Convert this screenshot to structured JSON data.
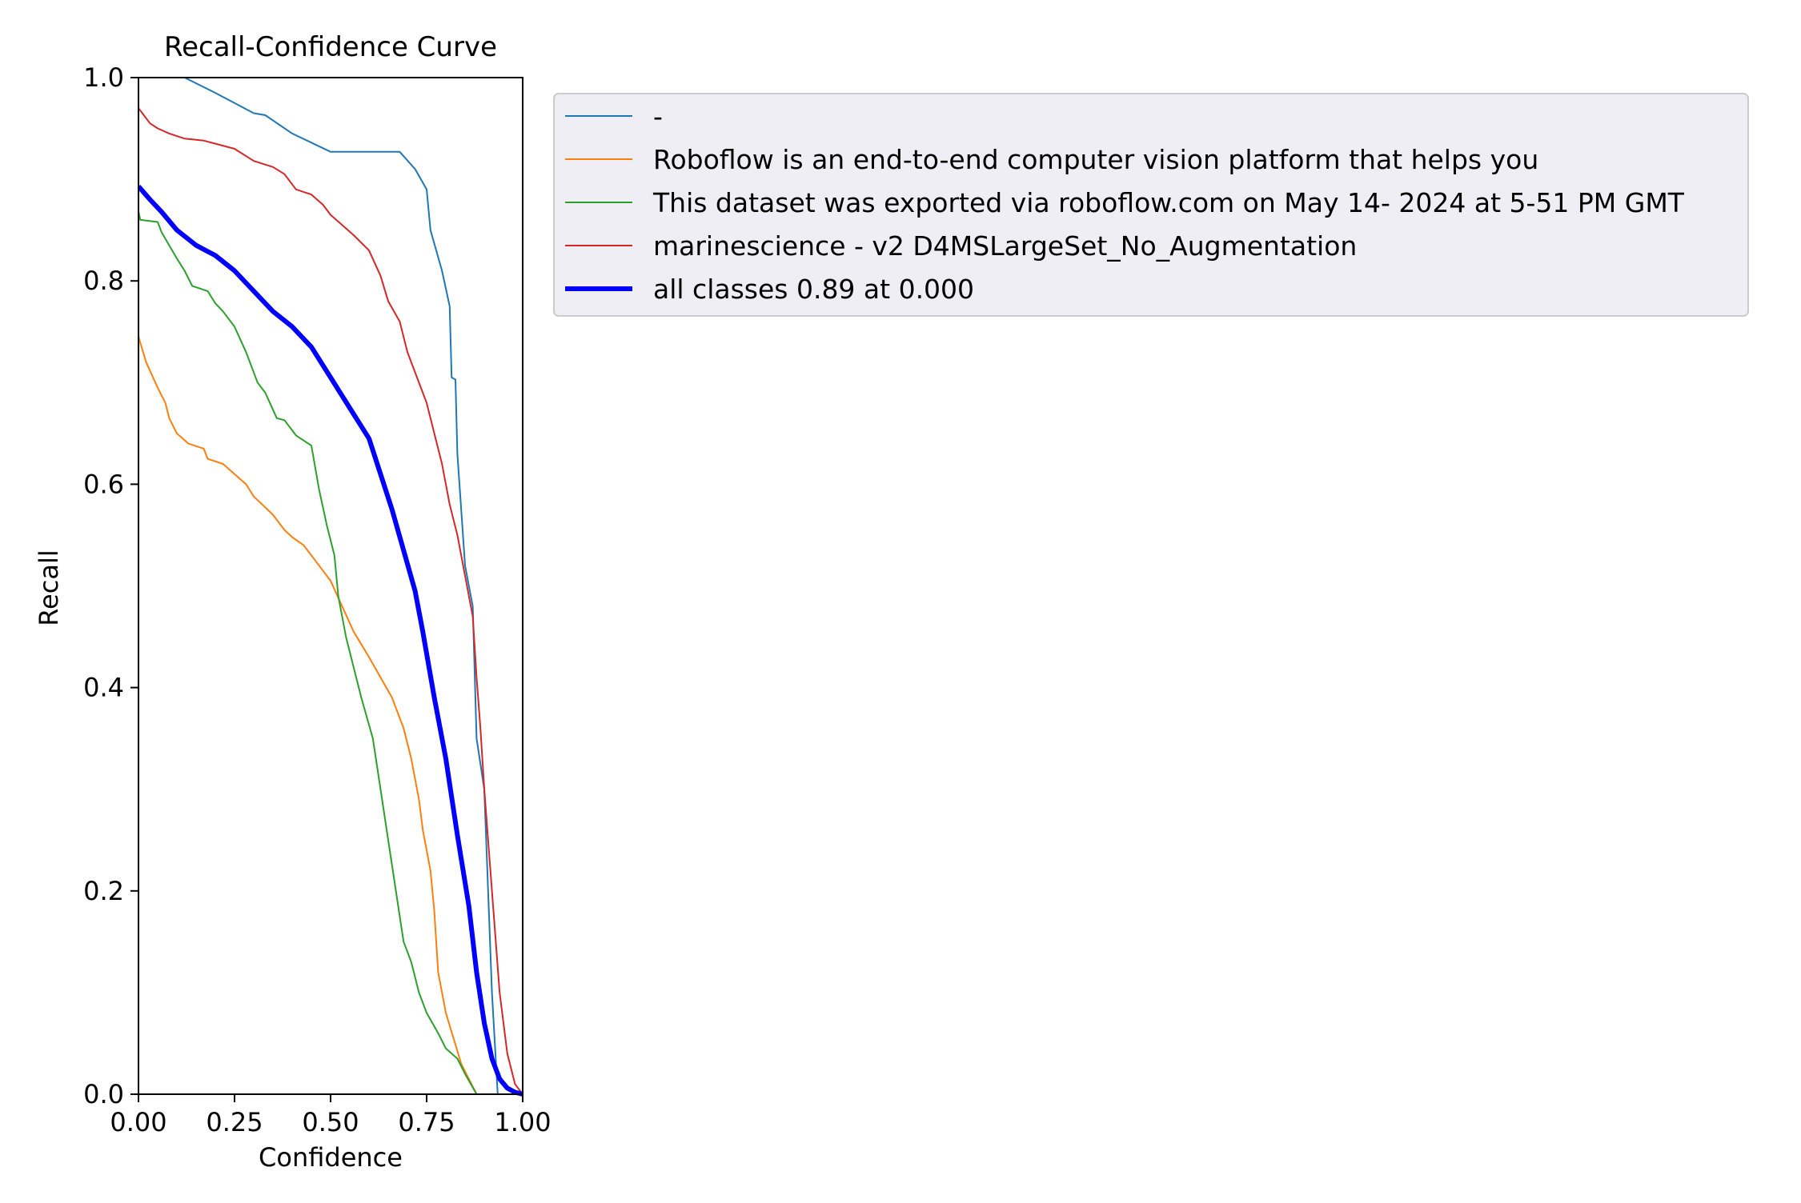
{
  "chart_data": {
    "type": "line",
    "title": "Recall-Confidence Curve",
    "xlabel": "Confidence",
    "ylabel": "Recall",
    "xlim": [
      0,
      1
    ],
    "ylim": [
      0,
      1
    ],
    "x_ticks": [
      "0.00",
      "0.25",
      "0.50",
      "0.75",
      "1.00"
    ],
    "y_ticks": [
      "0.0",
      "0.2",
      "0.4",
      "0.6",
      "0.8",
      "1.0"
    ],
    "grid": false,
    "legend_position": "outside-right-top",
    "series": [
      {
        "name": "-",
        "color": "#1f77b4",
        "width": 2,
        "points": [
          [
            0.0,
            1.0
          ],
          [
            0.12,
            1.0
          ],
          [
            0.2,
            0.985
          ],
          [
            0.3,
            0.965
          ],
          [
            0.33,
            0.963
          ],
          [
            0.4,
            0.945
          ],
          [
            0.5,
            0.927
          ],
          [
            0.55,
            0.927
          ],
          [
            0.6,
            0.927
          ],
          [
            0.68,
            0.927
          ],
          [
            0.72,
            0.91
          ],
          [
            0.75,
            0.89
          ],
          [
            0.76,
            0.85
          ],
          [
            0.79,
            0.81
          ],
          [
            0.81,
            0.775
          ],
          [
            0.815,
            0.705
          ],
          [
            0.825,
            0.703
          ],
          [
            0.83,
            0.63
          ],
          [
            0.85,
            0.52
          ],
          [
            0.87,
            0.48
          ],
          [
            0.88,
            0.35
          ],
          [
            0.9,
            0.3
          ],
          [
            0.92,
            0.1
          ],
          [
            0.935,
            0.0
          ],
          [
            1.0,
            0.0
          ]
        ]
      },
      {
        "name": "Roboflow is an end-to-end computer vision platform that helps you",
        "color": "#ff7f0e",
        "width": 2,
        "points": [
          [
            0.0,
            0.745
          ],
          [
            0.02,
            0.72
          ],
          [
            0.05,
            0.695
          ],
          [
            0.07,
            0.68
          ],
          [
            0.08,
            0.665
          ],
          [
            0.1,
            0.65
          ],
          [
            0.13,
            0.64
          ],
          [
            0.17,
            0.635
          ],
          [
            0.18,
            0.625
          ],
          [
            0.22,
            0.62
          ],
          [
            0.25,
            0.61
          ],
          [
            0.28,
            0.6
          ],
          [
            0.3,
            0.588
          ],
          [
            0.35,
            0.57
          ],
          [
            0.38,
            0.555
          ],
          [
            0.4,
            0.548
          ],
          [
            0.43,
            0.54
          ],
          [
            0.46,
            0.525
          ],
          [
            0.5,
            0.505
          ],
          [
            0.53,
            0.48
          ],
          [
            0.56,
            0.455
          ],
          [
            0.6,
            0.43
          ],
          [
            0.63,
            0.41
          ],
          [
            0.66,
            0.39
          ],
          [
            0.69,
            0.36
          ],
          [
            0.71,
            0.33
          ],
          [
            0.73,
            0.29
          ],
          [
            0.74,
            0.26
          ],
          [
            0.76,
            0.22
          ],
          [
            0.77,
            0.18
          ],
          [
            0.78,
            0.12
          ],
          [
            0.8,
            0.08
          ],
          [
            0.82,
            0.055
          ],
          [
            0.84,
            0.03
          ],
          [
            0.86,
            0.015
          ],
          [
            0.88,
            0.0
          ],
          [
            1.0,
            0.0
          ]
        ]
      },
      {
        "name": "This dataset was exported via roboflow.com on May 14- 2024 at 5-51 PM GMT",
        "color": "#2ca02c",
        "width": 2,
        "points": [
          [
            0.0,
            0.868
          ],
          [
            0.005,
            0.86
          ],
          [
            0.05,
            0.858
          ],
          [
            0.06,
            0.848
          ],
          [
            0.08,
            0.835
          ],
          [
            0.1,
            0.822
          ],
          [
            0.12,
            0.81
          ],
          [
            0.14,
            0.795
          ],
          [
            0.18,
            0.79
          ],
          [
            0.2,
            0.778
          ],
          [
            0.22,
            0.77
          ],
          [
            0.25,
            0.755
          ],
          [
            0.28,
            0.73
          ],
          [
            0.31,
            0.7
          ],
          [
            0.33,
            0.69
          ],
          [
            0.36,
            0.665
          ],
          [
            0.38,
            0.663
          ],
          [
            0.41,
            0.648
          ],
          [
            0.45,
            0.638
          ],
          [
            0.47,
            0.595
          ],
          [
            0.49,
            0.56
          ],
          [
            0.51,
            0.53
          ],
          [
            0.52,
            0.49
          ],
          [
            0.54,
            0.45
          ],
          [
            0.56,
            0.42
          ],
          [
            0.58,
            0.39
          ],
          [
            0.61,
            0.35
          ],
          [
            0.63,
            0.3
          ],
          [
            0.65,
            0.25
          ],
          [
            0.67,
            0.2
          ],
          [
            0.69,
            0.15
          ],
          [
            0.71,
            0.13
          ],
          [
            0.73,
            0.1
          ],
          [
            0.75,
            0.08
          ],
          [
            0.78,
            0.06
          ],
          [
            0.8,
            0.045
          ],
          [
            0.83,
            0.035
          ],
          [
            0.85,
            0.02
          ],
          [
            0.88,
            0.0
          ],
          [
            1.0,
            0.0
          ]
        ]
      },
      {
        "name": "marinescience - v2 D4MSLargeSet_No_Augmentation",
        "color": "#d62728",
        "width": 2,
        "points": [
          [
            0.0,
            0.97
          ],
          [
            0.01,
            0.965
          ],
          [
            0.03,
            0.955
          ],
          [
            0.05,
            0.95
          ],
          [
            0.08,
            0.945
          ],
          [
            0.12,
            0.94
          ],
          [
            0.17,
            0.938
          ],
          [
            0.2,
            0.935
          ],
          [
            0.25,
            0.93
          ],
          [
            0.3,
            0.918
          ],
          [
            0.35,
            0.912
          ],
          [
            0.38,
            0.905
          ],
          [
            0.41,
            0.89
          ],
          [
            0.45,
            0.885
          ],
          [
            0.48,
            0.875
          ],
          [
            0.5,
            0.865
          ],
          [
            0.53,
            0.855
          ],
          [
            0.56,
            0.845
          ],
          [
            0.6,
            0.83
          ],
          [
            0.63,
            0.805
          ],
          [
            0.65,
            0.78
          ],
          [
            0.68,
            0.76
          ],
          [
            0.7,
            0.73
          ],
          [
            0.72,
            0.71
          ],
          [
            0.75,
            0.68
          ],
          [
            0.77,
            0.65
          ],
          [
            0.79,
            0.62
          ],
          [
            0.81,
            0.58
          ],
          [
            0.83,
            0.55
          ],
          [
            0.85,
            0.51
          ],
          [
            0.87,
            0.47
          ],
          [
            0.88,
            0.41
          ],
          [
            0.89,
            0.36
          ],
          [
            0.9,
            0.3
          ],
          [
            0.92,
            0.2
          ],
          [
            0.94,
            0.1
          ],
          [
            0.96,
            0.04
          ],
          [
            0.98,
            0.01
          ],
          [
            1.0,
            0.0
          ]
        ]
      },
      {
        "name": "all classes 0.89 at 0.000",
        "color": "#0000ff",
        "width": 6,
        "points": [
          [
            0.0,
            0.893
          ],
          [
            0.03,
            0.88
          ],
          [
            0.06,
            0.868
          ],
          [
            0.1,
            0.85
          ],
          [
            0.15,
            0.835
          ],
          [
            0.2,
            0.825
          ],
          [
            0.25,
            0.81
          ],
          [
            0.3,
            0.79
          ],
          [
            0.35,
            0.77
          ],
          [
            0.4,
            0.755
          ],
          [
            0.45,
            0.735
          ],
          [
            0.5,
            0.705
          ],
          [
            0.55,
            0.675
          ],
          [
            0.6,
            0.645
          ],
          [
            0.63,
            0.61
          ],
          [
            0.66,
            0.575
          ],
          [
            0.69,
            0.535
          ],
          [
            0.72,
            0.495
          ],
          [
            0.74,
            0.455
          ],
          [
            0.77,
            0.39
          ],
          [
            0.8,
            0.33
          ],
          [
            0.83,
            0.255
          ],
          [
            0.86,
            0.185
          ],
          [
            0.88,
            0.12
          ],
          [
            0.9,
            0.07
          ],
          [
            0.92,
            0.035
          ],
          [
            0.94,
            0.015
          ],
          [
            0.96,
            0.006
          ],
          [
            0.98,
            0.002
          ],
          [
            1.0,
            0.0
          ]
        ]
      }
    ]
  }
}
